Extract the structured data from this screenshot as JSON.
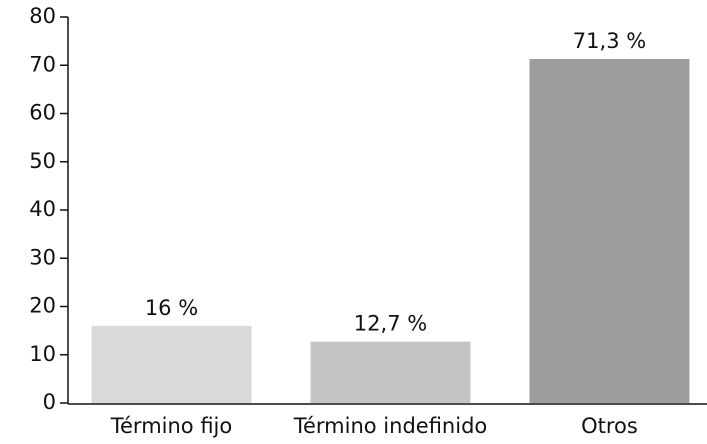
{
  "chart_data": {
    "type": "bar",
    "categories": [
      "Término fijo",
      "Término indefinido",
      "Otros"
    ],
    "values": [
      16,
      12.7,
      71.3
    ],
    "value_labels": [
      "16 %",
      "12,7 %",
      "71,3 %"
    ],
    "colors": [
      "#d9d9d9",
      "#c4c4c4",
      "#9e9e9f"
    ],
    "ylim": [
      0,
      80
    ],
    "yticks": [
      0,
      10,
      20,
      30,
      40,
      50,
      60,
      70,
      80
    ]
  }
}
